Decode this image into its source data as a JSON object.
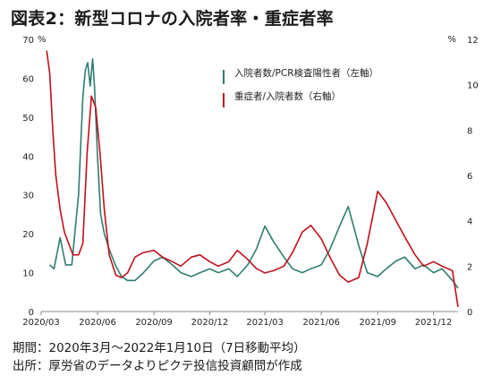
{
  "title": "図表2：新型コロナの入院者率・重症者率",
  "notes": {
    "period": "期間：2020年3月～2022年1月10日（7日移動平均）",
    "source": "出所：厚労省のデータよりピクテ投信投資顧問が作成"
  },
  "chart_data": {
    "type": "line",
    "title": "",
    "x_tick_labels": [
      "2020/03",
      "2020/06",
      "2020/09",
      "2020/12",
      "2021/03",
      "2021/06",
      "2021/09",
      "2021/12"
    ],
    "x_range": [
      "2020-03-01",
      "2022-01-10"
    ],
    "y_left": {
      "unit": "%",
      "ylim": [
        0,
        70
      ],
      "ticks": [
        0,
        10,
        20,
        30,
        40,
        50,
        60,
        70
      ]
    },
    "y_right": {
      "unit": "%",
      "ylim": [
        0,
        12
      ],
      "ticks": [
        0,
        2,
        4,
        6,
        8,
        10,
        12
      ]
    },
    "grid": false,
    "legend_position": "top-right",
    "series": [
      {
        "name": "入院者数/PCR検査陽性者（左軸）",
        "axis": "left",
        "color": "#2e7d6f",
        "x": [
          "2020-03-15",
          "2020-03-22",
          "2020-04-01",
          "2020-04-10",
          "2020-04-20",
          "2020-05-01",
          "2020-05-08",
          "2020-05-12",
          "2020-05-16",
          "2020-05-20",
          "2020-05-24",
          "2020-05-27",
          "2020-06-01",
          "2020-06-06",
          "2020-06-12",
          "2020-06-20",
          "2020-06-30",
          "2020-07-10",
          "2020-07-20",
          "2020-08-01",
          "2020-08-15",
          "2020-09-01",
          "2020-09-15",
          "2020-10-01",
          "2020-10-15",
          "2020-11-01",
          "2020-11-15",
          "2020-12-01",
          "2020-12-15",
          "2021-01-01",
          "2021-01-15",
          "2021-02-01",
          "2021-02-15",
          "2021-03-01",
          "2021-03-15",
          "2021-04-01",
          "2021-04-15",
          "2021-05-01",
          "2021-05-15",
          "2021-06-01",
          "2021-06-15",
          "2021-07-01",
          "2021-07-15",
          "2021-08-01",
          "2021-08-15",
          "2021-09-01",
          "2021-09-15",
          "2021-10-01",
          "2021-10-15",
          "2021-11-01",
          "2021-11-15",
          "2021-12-01",
          "2021-12-15",
          "2022-01-01",
          "2022-01-10"
        ],
        "values": [
          12,
          11,
          19,
          12,
          12,
          30,
          55,
          62,
          64,
          58,
          65,
          58,
          40,
          25,
          20,
          16,
          12,
          9,
          8,
          8,
          10,
          13,
          14,
          12,
          10,
          9,
          10,
          11,
          10,
          11,
          9,
          12,
          16,
          22,
          18,
          14,
          11,
          10,
          11,
          12,
          16,
          22,
          27,
          17,
          10,
          9,
          11,
          13,
          14,
          11,
          12,
          10,
          11,
          8,
          6
        ]
      },
      {
        "name": "重症者/入院者数（右軸）",
        "axis": "right",
        "color": "#c0101a",
        "x": [
          "2020-03-10",
          "2020-03-15",
          "2020-03-20",
          "2020-03-25",
          "2020-04-01",
          "2020-04-08",
          "2020-04-15",
          "2020-04-22",
          "2020-05-01",
          "2020-05-08",
          "2020-05-15",
          "2020-05-22",
          "2020-05-29",
          "2020-06-05",
          "2020-06-12",
          "2020-06-20",
          "2020-07-01",
          "2020-07-10",
          "2020-07-20",
          "2020-08-01",
          "2020-08-15",
          "2020-09-01",
          "2020-09-15",
          "2020-10-01",
          "2020-10-15",
          "2020-11-01",
          "2020-11-15",
          "2020-12-01",
          "2020-12-15",
          "2021-01-01",
          "2021-01-15",
          "2021-02-01",
          "2021-02-15",
          "2021-03-01",
          "2021-03-15",
          "2021-04-01",
          "2021-04-15",
          "2021-05-01",
          "2021-05-15",
          "2021-06-01",
          "2021-06-15",
          "2021-07-01",
          "2021-07-15",
          "2021-08-01",
          "2021-08-15",
          "2021-09-01",
          "2021-09-15",
          "2021-10-01",
          "2021-10-15",
          "2021-11-01",
          "2021-11-15",
          "2021-12-01",
          "2021-12-15",
          "2022-01-01",
          "2022-01-10"
        ],
        "values": [
          11.5,
          10.5,
          8.0,
          6.0,
          4.5,
          3.5,
          3.0,
          2.5,
          2.5,
          3.0,
          7.0,
          9.5,
          9.0,
          7.0,
          4.5,
          2.5,
          1.6,
          1.5,
          1.7,
          2.4,
          2.6,
          2.7,
          2.4,
          2.2,
          2.0,
          2.4,
          2.5,
          2.2,
          2.0,
          2.2,
          2.7,
          2.3,
          1.9,
          1.7,
          1.8,
          2.0,
          2.6,
          3.5,
          3.8,
          3.2,
          2.4,
          1.6,
          1.3,
          1.5,
          3.0,
          5.3,
          4.8,
          4.0,
          3.3,
          2.5,
          2.0,
          2.2,
          2.0,
          1.8,
          0.2
        ]
      }
    ]
  }
}
